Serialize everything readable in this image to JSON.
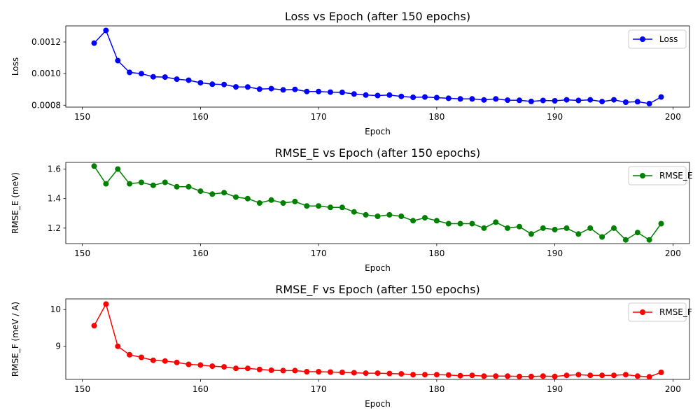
{
  "chart_data": [
    {
      "type": "line",
      "title": "Loss vs Epoch (after 150 epochs)",
      "xlabel": "Epoch",
      "ylabel": "Loss",
      "xlim": [
        148.6,
        201.4
      ],
      "ylim": [
        0.000788,
        0.001302
      ],
      "xticks": [
        150,
        160,
        170,
        180,
        190,
        200
      ],
      "yticks": [
        0.0008,
        0.001,
        0.0012
      ],
      "yticklabels": [
        "0.0008",
        "0.0010",
        "0.0012"
      ],
      "grid": false,
      "legend_position": "top-right",
      "color": "#0000ff",
      "series": [
        {
          "name": "Loss",
          "x": [
            151,
            152,
            153,
            154,
            155,
            156,
            157,
            158,
            159,
            160,
            161,
            162,
            163,
            164,
            165,
            166,
            167,
            168,
            169,
            170,
            171,
            172,
            173,
            174,
            175,
            176,
            177,
            178,
            179,
            180,
            181,
            182,
            183,
            184,
            185,
            186,
            187,
            188,
            189,
            190,
            191,
            192,
            193,
            194,
            195,
            196,
            197,
            198,
            199
          ],
          "values": [
            0.001193,
            0.001273,
            0.001082,
            0.001008,
            0.001,
            0.00098,
            0.000978,
            0.000965,
            0.000958,
            0.000942,
            0.000933,
            0.000931,
            0.000916,
            0.000915,
            0.000902,
            0.000905,
            0.000897,
            0.0009,
            0.000887,
            0.000887,
            0.000883,
            0.000881,
            0.000871,
            0.000864,
            0.000861,
            0.000864,
            0.000856,
            0.00085,
            0.000852,
            0.000848,
            0.000844,
            0.00084,
            0.00084,
            0.000833,
            0.00084,
            0.000832,
            0.000831,
            0.000824,
            0.00083,
            0.000828,
            0.000834,
            0.00083,
            0.000834,
            0.000823,
            0.000834,
            0.000819,
            0.000822,
            0.00081,
            0.000852
          ]
        }
      ]
    },
    {
      "type": "line",
      "title": "RMSE_E vs Epoch (after 150 epochs)",
      "xlabel": "Epoch",
      "ylabel": "RMSE_E (meV)",
      "xlim": [
        148.6,
        201.4
      ],
      "ylim": [
        1.095,
        1.645
      ],
      "xticks": [
        150,
        160,
        170,
        180,
        190,
        200
      ],
      "yticks": [
        1.2,
        1.4,
        1.6
      ],
      "yticklabels": [
        "1.2",
        "1.4",
        "1.6"
      ],
      "grid": false,
      "legend_position": "top-right",
      "color": "#008000",
      "series": [
        {
          "name": "RMSE_E",
          "x": [
            151,
            152,
            153,
            154,
            155,
            156,
            157,
            158,
            159,
            160,
            161,
            162,
            163,
            164,
            165,
            166,
            167,
            168,
            169,
            170,
            171,
            172,
            173,
            174,
            175,
            176,
            177,
            178,
            179,
            180,
            181,
            182,
            183,
            184,
            185,
            186,
            187,
            188,
            189,
            190,
            191,
            192,
            193,
            194,
            195,
            196,
            197,
            198,
            199
          ],
          "values": [
            1.62,
            1.5,
            1.6,
            1.5,
            1.51,
            1.49,
            1.51,
            1.48,
            1.48,
            1.45,
            1.43,
            1.44,
            1.41,
            1.4,
            1.37,
            1.39,
            1.37,
            1.38,
            1.35,
            1.35,
            1.34,
            1.34,
            1.31,
            1.29,
            1.28,
            1.29,
            1.28,
            1.25,
            1.27,
            1.25,
            1.23,
            1.23,
            1.23,
            1.2,
            1.24,
            1.2,
            1.21,
            1.16,
            1.2,
            1.19,
            1.2,
            1.16,
            1.2,
            1.14,
            1.2,
            1.12,
            1.17,
            1.12,
            1.23
          ]
        }
      ]
    },
    {
      "type": "line",
      "title": "RMSE_F vs Epoch (after 150 epochs)",
      "xlabel": "Epoch",
      "ylabel": "RMSE_F (meV / A)",
      "xlim": [
        148.6,
        201.4
      ],
      "ylim": [
        8.1,
        10.29
      ],
      "xticks": [
        150,
        160,
        170,
        180,
        190,
        200
      ],
      "yticks": [
        9,
        10
      ],
      "yticklabels": [
        "9",
        "10"
      ],
      "grid": false,
      "legend_position": "top-right",
      "color": "#ff0000",
      "series": [
        {
          "name": "RMSE_F",
          "x": [
            151,
            152,
            153,
            154,
            155,
            156,
            157,
            158,
            159,
            160,
            161,
            162,
            163,
            164,
            165,
            166,
            167,
            168,
            169,
            170,
            171,
            172,
            173,
            174,
            175,
            176,
            177,
            178,
            179,
            180,
            181,
            182,
            183,
            184,
            185,
            186,
            187,
            188,
            189,
            190,
            191,
            192,
            193,
            194,
            195,
            196,
            197,
            198,
            199
          ],
          "values": [
            9.56,
            10.15,
            9.0,
            8.77,
            8.7,
            8.62,
            8.6,
            8.56,
            8.51,
            8.49,
            8.46,
            8.44,
            8.4,
            8.4,
            8.37,
            8.35,
            8.34,
            8.34,
            8.31,
            8.31,
            8.3,
            8.29,
            8.28,
            8.27,
            8.27,
            8.26,
            8.25,
            8.23,
            8.23,
            8.23,
            8.22,
            8.2,
            8.21,
            8.19,
            8.19,
            8.19,
            8.18,
            8.18,
            8.19,
            8.18,
            8.21,
            8.23,
            8.21,
            8.21,
            8.21,
            8.23,
            8.19,
            8.17,
            8.29
          ]
        }
      ]
    }
  ]
}
